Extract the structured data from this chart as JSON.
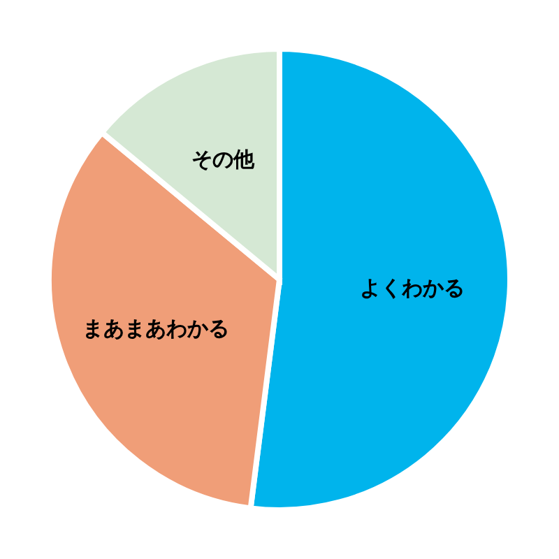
{
  "chart_data": {
    "type": "pie",
    "categories": [
      "よくわかる",
      "まあまあわかる",
      "その他"
    ],
    "values": [
      52,
      34,
      14
    ],
    "colors": [
      "#00b4ec",
      "#f09e78",
      "#d5e8d4"
    ]
  }
}
